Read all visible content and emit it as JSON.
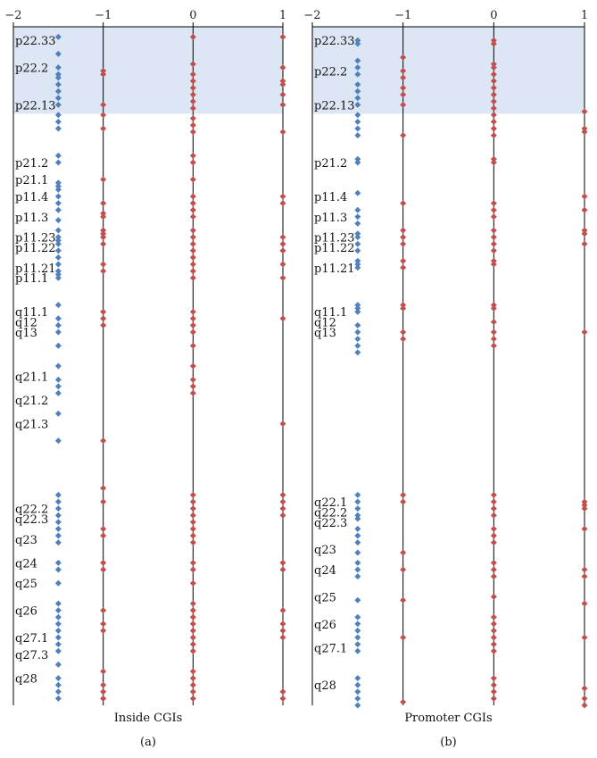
{
  "chart_data": [
    {
      "type": "scatter",
      "panel_label": "(a)",
      "xlabel": "Inside CGIs",
      "xlim": [
        -2,
        1
      ],
      "x_ticks": [
        "-2",
        "-1",
        "0",
        "1"
      ],
      "highlight_band": [
        "p22.33",
        "p22.13"
      ],
      "bands": [
        "p22.33",
        "p22.2",
        "p22.13",
        "p21.2",
        "p21.1",
        "p11.4",
        "p11.3",
        "p11.23",
        "p11.22",
        "p11.21",
        "p11.1",
        "q11.1",
        "q12",
        "q13",
        "q21.1",
        "q21.2",
        "q21.3",
        "q22.2",
        "q22.3",
        "q23",
        "q24",
        "q25",
        "q26",
        "q27.1",
        "q27.3",
        "q28"
      ],
      "band_pos": [
        0.02,
        0.06,
        0.115,
        0.2,
        0.225,
        0.25,
        0.28,
        0.31,
        0.325,
        0.355,
        0.37,
        0.42,
        0.435,
        0.45,
        0.515,
        0.55,
        0.585,
        0.71,
        0.725,
        0.755,
        0.79,
        0.82,
        0.86,
        0.9,
        0.925,
        0.96
      ],
      "blue_series": {
        "x": -1.5,
        "y": [
          0.015,
          0.04,
          0.06,
          0.07,
          0.075,
          0.085,
          0.095,
          0.105,
          0.115,
          0.13,
          0.14,
          0.15,
          0.19,
          0.2,
          0.23,
          0.235,
          0.24,
          0.25,
          0.26,
          0.27,
          0.285,
          0.3,
          0.31,
          0.315,
          0.32,
          0.33,
          0.34,
          0.35,
          0.36,
          0.365,
          0.37,
          0.41,
          0.43,
          0.44,
          0.45,
          0.47,
          0.5,
          0.52,
          0.53,
          0.54,
          0.57,
          0.61,
          0.69,
          0.7,
          0.71,
          0.72,
          0.73,
          0.74,
          0.75,
          0.76,
          0.79,
          0.8,
          0.82,
          0.85,
          0.86,
          0.87,
          0.88,
          0.89,
          0.9,
          0.91,
          0.92,
          0.94,
          0.96,
          0.97,
          0.98,
          0.99
        ]
      },
      "red_series": [
        {
          "x": -1,
          "y": [
            0.065,
            0.07,
            0.115,
            0.13,
            0.15,
            0.225,
            0.26,
            0.275,
            0.28,
            0.3,
            0.305,
            0.31,
            0.32,
            0.35,
            0.36,
            0.42,
            0.43,
            0.44,
            0.61,
            0.68,
            0.7,
            0.74,
            0.75,
            0.79,
            0.8,
            0.86,
            0.88,
            0.89,
            0.95,
            0.97,
            0.98,
            0.99
          ]
        },
        {
          "x": 0,
          "y": [
            0.015,
            0.055,
            0.07,
            0.08,
            0.09,
            0.1,
            0.11,
            0.12,
            0.135,
            0.145,
            0.155,
            0.19,
            0.2,
            0.225,
            0.25,
            0.26,
            0.27,
            0.28,
            0.3,
            0.31,
            0.32,
            0.33,
            0.34,
            0.35,
            0.36,
            0.37,
            0.42,
            0.43,
            0.44,
            0.45,
            0.47,
            0.5,
            0.52,
            0.53,
            0.54,
            0.69,
            0.7,
            0.71,
            0.72,
            0.73,
            0.74,
            0.75,
            0.76,
            0.79,
            0.8,
            0.82,
            0.85,
            0.86,
            0.87,
            0.88,
            0.89,
            0.9,
            0.91,
            0.92,
            0.95,
            0.96,
            0.97,
            0.98,
            0.99
          ]
        },
        {
          "x": 1,
          "y": [
            0.015,
            0.06,
            0.08,
            0.085,
            0.1,
            0.115,
            0.155,
            0.25,
            0.26,
            0.31,
            0.32,
            0.33,
            0.35,
            0.37,
            0.43,
            0.585,
            0.69,
            0.7,
            0.71,
            0.72,
            0.79,
            0.8,
            0.86,
            0.88,
            0.89,
            0.9,
            0.98,
            0.99
          ]
        }
      ]
    },
    {
      "type": "scatter",
      "panel_label": "(b)",
      "xlabel": "Promoter CGIs",
      "xlim": [
        -2,
        1
      ],
      "x_ticks": [
        "-2",
        "-1",
        "0",
        "1"
      ],
      "highlight_band": [
        "p22.33",
        "p22.13"
      ],
      "bands": [
        "p22.33",
        "p22.2",
        "p22.13",
        "p21.2",
        "p11.4",
        "p11.3",
        "p11.23",
        "p11.22",
        "p11.21",
        "q11.1",
        "q12",
        "q13",
        "q22.1",
        "q22.2",
        "q22.3",
        "q23",
        "q24",
        "q25",
        "q26",
        "q27.1",
        "q28"
      ],
      "band_pos": [
        0.02,
        0.065,
        0.115,
        0.2,
        0.25,
        0.28,
        0.31,
        0.325,
        0.355,
        0.42,
        0.435,
        0.45,
        0.7,
        0.715,
        0.73,
        0.77,
        0.8,
        0.84,
        0.88,
        0.915,
        0.97
      ],
      "blue_series": {
        "x": -1.5,
        "y": [
          0.02,
          0.025,
          0.05,
          0.06,
          0.07,
          0.085,
          0.095,
          0.105,
          0.115,
          0.13,
          0.14,
          0.15,
          0.16,
          0.195,
          0.2,
          0.245,
          0.27,
          0.28,
          0.29,
          0.305,
          0.31,
          0.32,
          0.33,
          0.345,
          0.35,
          0.355,
          0.41,
          0.415,
          0.42,
          0.44,
          0.45,
          0.46,
          0.47,
          0.48,
          0.69,
          0.7,
          0.71,
          0.72,
          0.725,
          0.74,
          0.75,
          0.76,
          0.775,
          0.79,
          0.8,
          0.81,
          0.845,
          0.87,
          0.88,
          0.89,
          0.9,
          0.91,
          0.92,
          0.96,
          0.97,
          0.98,
          0.99,
          1.0
        ]
      },
      "red_series": [
        {
          "x": -1,
          "y": [
            0.045,
            0.065,
            0.075,
            0.09,
            0.1,
            0.115,
            0.16,
            0.26,
            0.3,
            0.31,
            0.32,
            0.345,
            0.355,
            0.41,
            0.415,
            0.45,
            0.46,
            0.69,
            0.7,
            0.775,
            0.8,
            0.845,
            0.9,
            0.995
          ]
        },
        {
          "x": 0,
          "y": [
            0.02,
            0.025,
            0.055,
            0.06,
            0.07,
            0.08,
            0.09,
            0.1,
            0.11,
            0.12,
            0.13,
            0.14,
            0.15,
            0.16,
            0.195,
            0.2,
            0.26,
            0.27,
            0.28,
            0.3,
            0.31,
            0.32,
            0.33,
            0.345,
            0.35,
            0.41,
            0.415,
            0.435,
            0.45,
            0.46,
            0.47,
            0.69,
            0.7,
            0.71,
            0.72,
            0.74,
            0.75,
            0.76,
            0.79,
            0.8,
            0.81,
            0.84,
            0.87,
            0.88,
            0.89,
            0.9,
            0.91,
            0.92,
            0.96,
            0.97,
            0.98,
            0.99
          ]
        },
        {
          "x": 1,
          "y": [
            0.125,
            0.15,
            0.155,
            0.25,
            0.27,
            0.3,
            0.305,
            0.32,
            0.45,
            0.7,
            0.705,
            0.71,
            0.74,
            0.8,
            0.81,
            0.85,
            0.9,
            0.975,
            0.99,
            1.0
          ]
        }
      ]
    }
  ],
  "colors": {
    "blue": "#4f81bd",
    "red": "#c0504d",
    "band": "#dde6f4"
  }
}
